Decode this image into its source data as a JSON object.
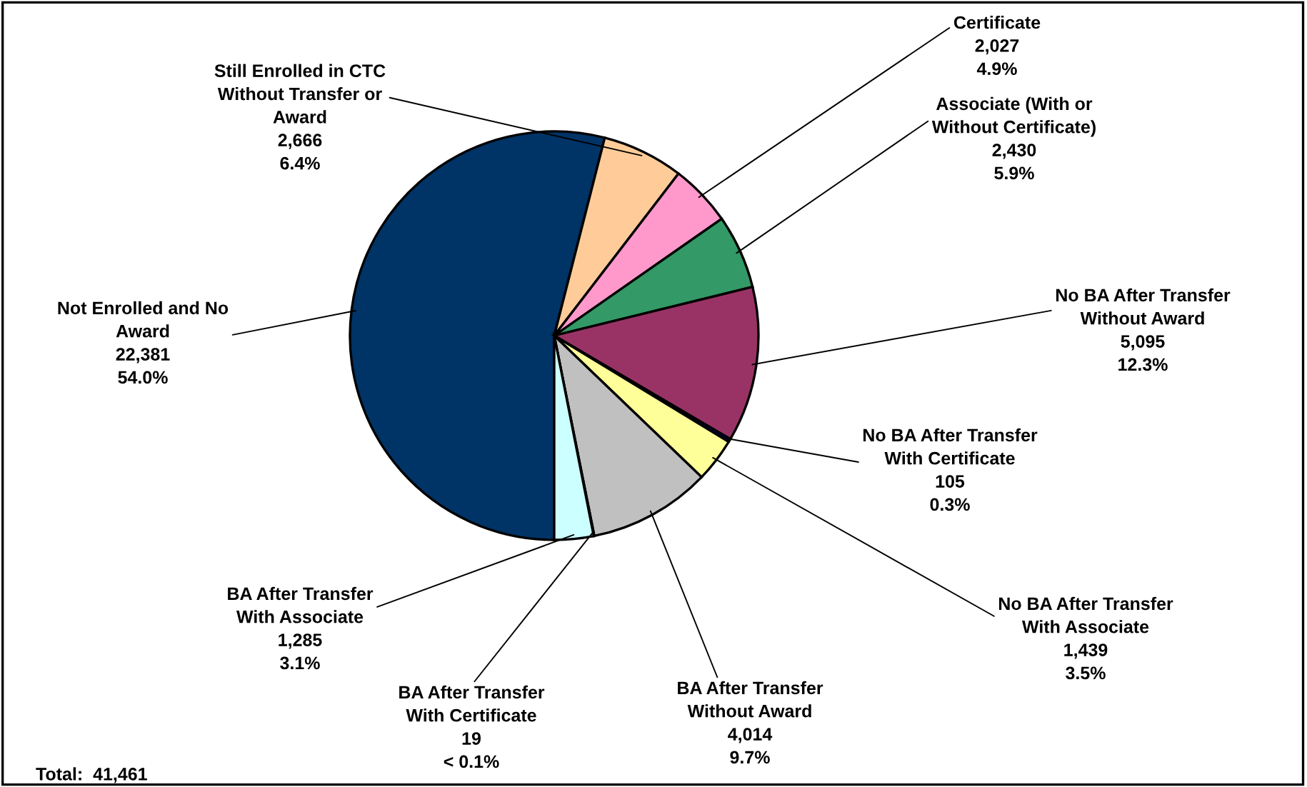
{
  "chart_data": {
    "type": "pie",
    "categories": [
      "Not Enrolled and No\nAward",
      "Still Enrolled in CTC\nWithout Transfer or\nAward",
      "Certificate",
      "Associate (With or\nWithout Certificate)",
      "No BA After Transfer\nWithout Award",
      "No BA After Transfer\nWith Certificate",
      "No BA After Transfer\nWith Associate",
      "BA After Transfer\nWithout Award",
      "BA After Transfer\nWith Certificate",
      "BA After Transfer\nWith Associate"
    ],
    "values": [
      22381,
      2666,
      2027,
      2430,
      5095,
      105,
      1439,
      4014,
      19,
      1285
    ],
    "value_labels": [
      "22,381\n54.0%",
      "2,666\n6.4%",
      "2,027\n4.9%",
      "2,430\n5.9%",
      "5,095\n12.3%",
      "105\n0.3%",
      "1,439\n3.5%",
      "4,014\n9.7%",
      "19\n< 0.1%",
      "1,285\n3.1%"
    ],
    "colors": [
      "#003366",
      "#ffcc99",
      "#ff99cc",
      "#339966",
      "#993366",
      "#000080",
      "#ffff99",
      "#c0c0c0",
      "#3366ff",
      "#ccffff"
    ],
    "annotations": [
      "Total:  41,461"
    ]
  }
}
